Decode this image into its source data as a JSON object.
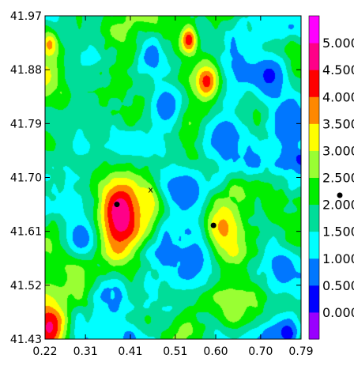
{
  "chart_data": {
    "type": "heatmap",
    "title": "",
    "xlabel": "",
    "ylabel": "",
    "xlim": [
      0.22,
      0.79
    ],
    "ylim": [
      41.43,
      41.97
    ],
    "x_ticks": [
      0.22,
      0.31,
      0.41,
      0.51,
      0.6,
      0.7,
      0.79
    ],
    "x_tick_labels": [
      "0.22",
      "0.31",
      "0.41",
      "0.51",
      "0.60",
      "0.70",
      "0.79"
    ],
    "y_ticks": [
      41.43,
      41.52,
      41.61,
      41.7,
      41.79,
      41.88,
      41.97
    ],
    "y_tick_labels": [
      "41.43",
      "41.52",
      "41.61",
      "41.70",
      "41.79",
      "41.88",
      "41.97"
    ],
    "colorbar": {
      "levels": [
        0.0,
        0.5,
        1.0,
        1.5,
        2.0,
        2.5,
        3.0,
        3.5,
        4.0,
        4.5,
        5.0
      ],
      "labels": [
        "0.000",
        "0.500",
        "1.000",
        "1.500",
        "2.000",
        "2.500",
        "3.000",
        "3.500",
        "4.000",
        "4.500",
        "5.000"
      ],
      "colors": [
        "#9900ff",
        "#0000ff",
        "#0077ff",
        "#00ffff",
        "#00dd99",
        "#00ee00",
        "#99ff33",
        "#ffff00",
        "#ff8800",
        "#ff0000",
        "#ff0088",
        "#ff00ff"
      ]
    },
    "hotspots": [
      {
        "x": 0.39,
        "y": 41.64,
        "value": 5.0,
        "r": 0.065
      },
      {
        "x": 0.45,
        "y": 41.66,
        "value": 3.6,
        "r": 0.035
      },
      {
        "x": 0.61,
        "y": 41.61,
        "value": 3.8,
        "r": 0.04
      },
      {
        "x": 0.58,
        "y": 41.86,
        "value": 4.3,
        "r": 0.03
      },
      {
        "x": 0.54,
        "y": 41.93,
        "value": 4.4,
        "r": 0.02
      },
      {
        "x": 0.23,
        "y": 41.45,
        "value": 4.6,
        "r": 0.04
      },
      {
        "x": 0.23,
        "y": 41.92,
        "value": 4.0,
        "r": 0.02
      },
      {
        "x": 0.22,
        "y": 41.87,
        "value": 3.2,
        "r": 0.05
      },
      {
        "x": 0.29,
        "y": 41.55,
        "value": 3.0,
        "r": 0.04
      },
      {
        "x": 0.64,
        "y": 41.48,
        "value": 2.8,
        "r": 0.04
      }
    ],
    "coldspots": [
      {
        "x": 0.53,
        "y": 41.68,
        "value": 0.7,
        "r": 0.05
      },
      {
        "x": 0.62,
        "y": 41.77,
        "value": 0.7,
        "r": 0.05
      },
      {
        "x": 0.72,
        "y": 41.87,
        "value": 0.4,
        "r": 0.05
      },
      {
        "x": 0.55,
        "y": 41.56,
        "value": 0.8,
        "r": 0.05
      },
      {
        "x": 0.76,
        "y": 41.79,
        "value": 0.5,
        "r": 0.04
      },
      {
        "x": 0.3,
        "y": 41.6,
        "value": 0.6,
        "r": 0.04
      },
      {
        "x": 0.49,
        "y": 41.82,
        "value": 0.6,
        "r": 0.04
      },
      {
        "x": 0.75,
        "y": 41.55,
        "value": 0.7,
        "r": 0.05
      },
      {
        "x": 0.76,
        "y": 41.44,
        "value": 0.2,
        "r": 0.03
      }
    ],
    "markers": [
      {
        "type": "dot",
        "x": 0.38,
        "y": 41.655
      },
      {
        "type": "dot",
        "x": 0.595,
        "y": 41.62
      },
      {
        "type": "cross",
        "x": 0.455,
        "y": 41.68,
        "label": "x"
      }
    ],
    "legend_marker": {
      "type": "dot"
    }
  }
}
